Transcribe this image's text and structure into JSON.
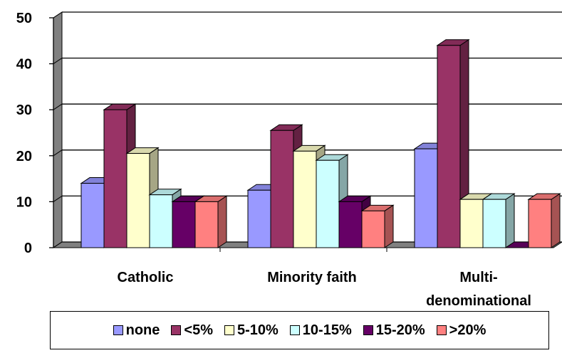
{
  "chart_data": {
    "type": "bar",
    "categories": [
      [
        "Catholic"
      ],
      [
        "Minority faith"
      ],
      [
        "Multi-",
        "denominational"
      ]
    ],
    "series": [
      {
        "name": "none",
        "color": "#9999FF",
        "values": [
          14,
          12.5,
          21.5
        ]
      },
      {
        "name": "<5%",
        "color": "#993366",
        "values": [
          30,
          25.5,
          44
        ]
      },
      {
        "name": "5-10%",
        "color": "#FFFFCC",
        "values": [
          20.5,
          21,
          10.5
        ]
      },
      {
        "name": "10-15%",
        "color": "#CCFFFF",
        "values": [
          11.5,
          19,
          10.5
        ]
      },
      {
        "name": "15-20%",
        "color": "#660066",
        "values": [
          10,
          10,
          0
        ]
      },
      {
        "name": ">20%",
        "color": "#FF8080",
        "values": [
          10,
          8,
          10.5
        ]
      }
    ],
    "y_ticks": [
      "0",
      "10",
      "20",
      "30",
      "40",
      "50"
    ],
    "ylim": [
      0,
      50
    ],
    "grid": true,
    "legend_position": "bottom",
    "style": "3d-clustered-bar"
  }
}
